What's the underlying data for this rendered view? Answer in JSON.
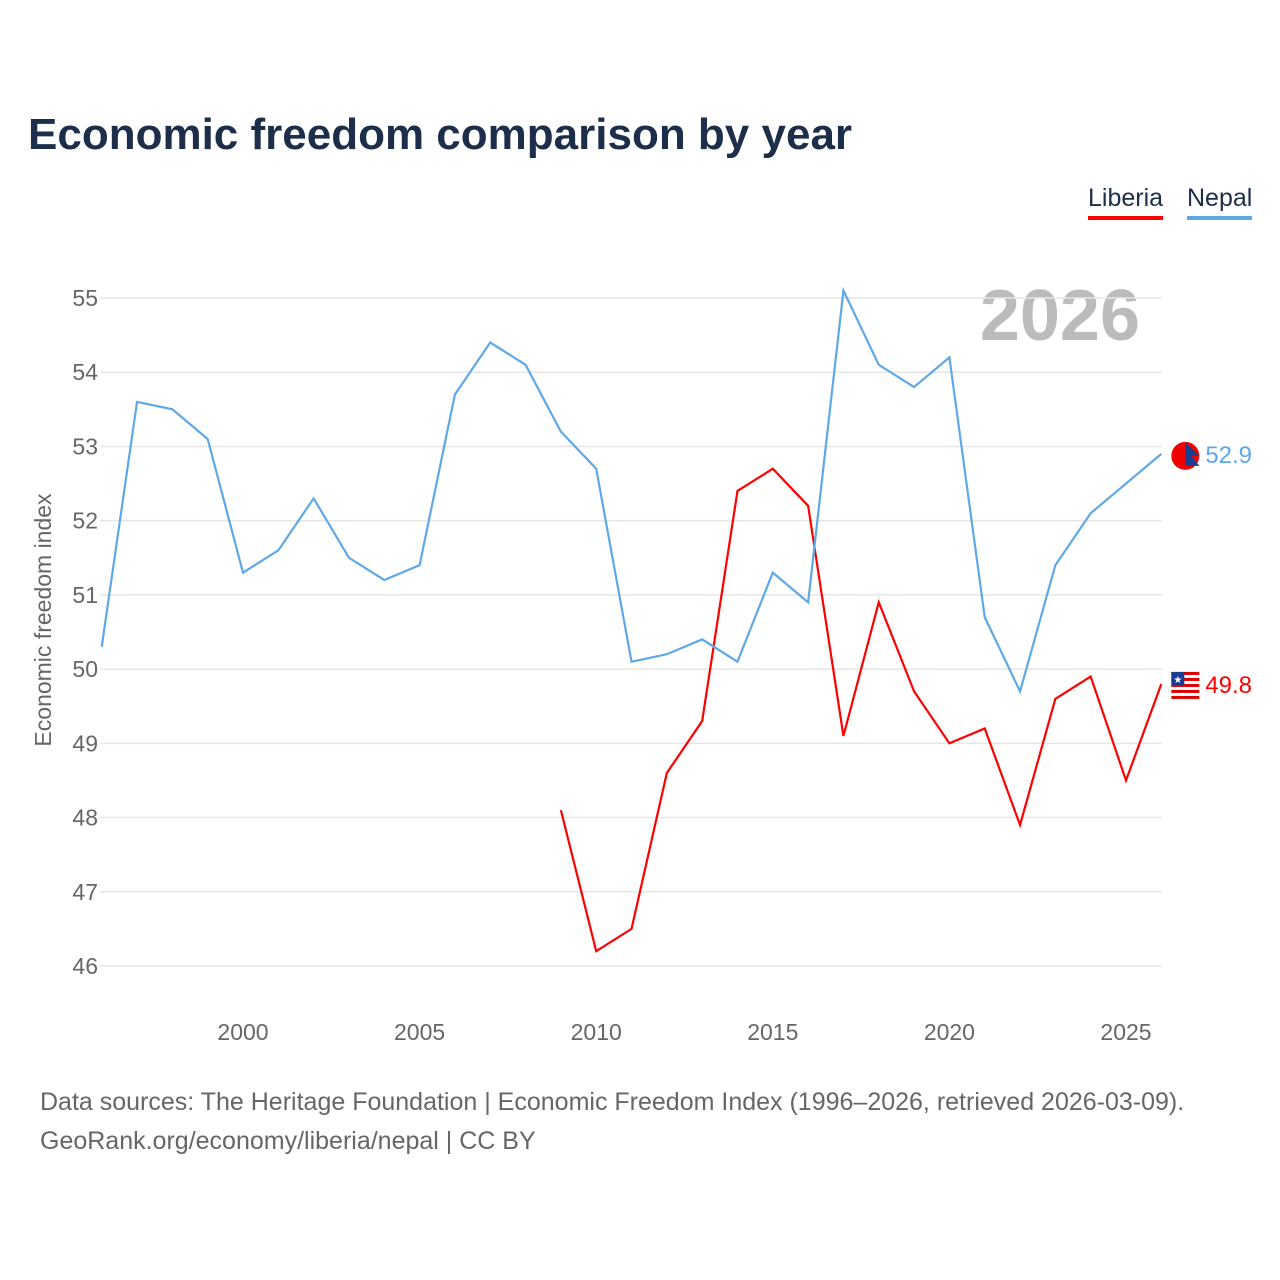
{
  "title": "Economic freedom comparison by year",
  "year_watermark": "2026",
  "source_line1": "Data sources: The Heritage Foundation | Economic Freedom Index (1996–2026, retrieved 2026-03-09).",
  "source_line2": "GeoRank.org/economy/liberia/nepal | CC BY",
  "chart_data": {
    "type": "line",
    "title": "Economic freedom comparison by year",
    "xlabel": "",
    "ylabel": "Economic freedom index",
    "xlim": [
      1996,
      2026
    ],
    "ylim": [
      45.5,
      55.3
    ],
    "yticks": [
      46,
      47,
      48,
      49,
      50,
      51,
      52,
      53,
      54,
      55
    ],
    "xticks": [
      2000,
      2005,
      2010,
      2015,
      2020,
      2025
    ],
    "grid": true,
    "legend_position": "top-right",
    "series": [
      {
        "name": "Liberia",
        "color": "#ff0000",
        "end_label": "49.8",
        "x": [
          2009,
          2010,
          2011,
          2012,
          2013,
          2014,
          2015,
          2016,
          2017,
          2018,
          2019,
          2020,
          2021,
          2022,
          2023,
          2024,
          2025,
          2026
        ],
        "values": [
          48.1,
          46.2,
          46.5,
          48.6,
          49.3,
          52.4,
          52.7,
          52.2,
          49.1,
          50.9,
          49.7,
          49.0,
          49.2,
          47.9,
          49.6,
          49.9,
          48.5,
          49.8
        ]
      },
      {
        "name": "Nepal",
        "color": "#5fa8e8",
        "end_label": "52.9",
        "x": [
          1996,
          1997,
          1998,
          1999,
          2000,
          2001,
          2002,
          2003,
          2004,
          2005,
          2006,
          2007,
          2008,
          2009,
          2010,
          2011,
          2012,
          2013,
          2014,
          2015,
          2016,
          2017,
          2018,
          2019,
          2020,
          2021,
          2022,
          2023,
          2024,
          2025,
          2026
        ],
        "values": [
          50.3,
          53.6,
          53.5,
          53.1,
          51.3,
          51.6,
          52.3,
          51.5,
          51.2,
          51.4,
          53.7,
          54.4,
          54.1,
          53.2,
          52.7,
          50.1,
          50.2,
          50.4,
          50.1,
          51.3,
          50.9,
          55.1,
          54.1,
          53.8,
          54.2,
          50.7,
          49.7,
          51.4,
          52.1,
          52.5,
          52.9
        ]
      }
    ]
  }
}
